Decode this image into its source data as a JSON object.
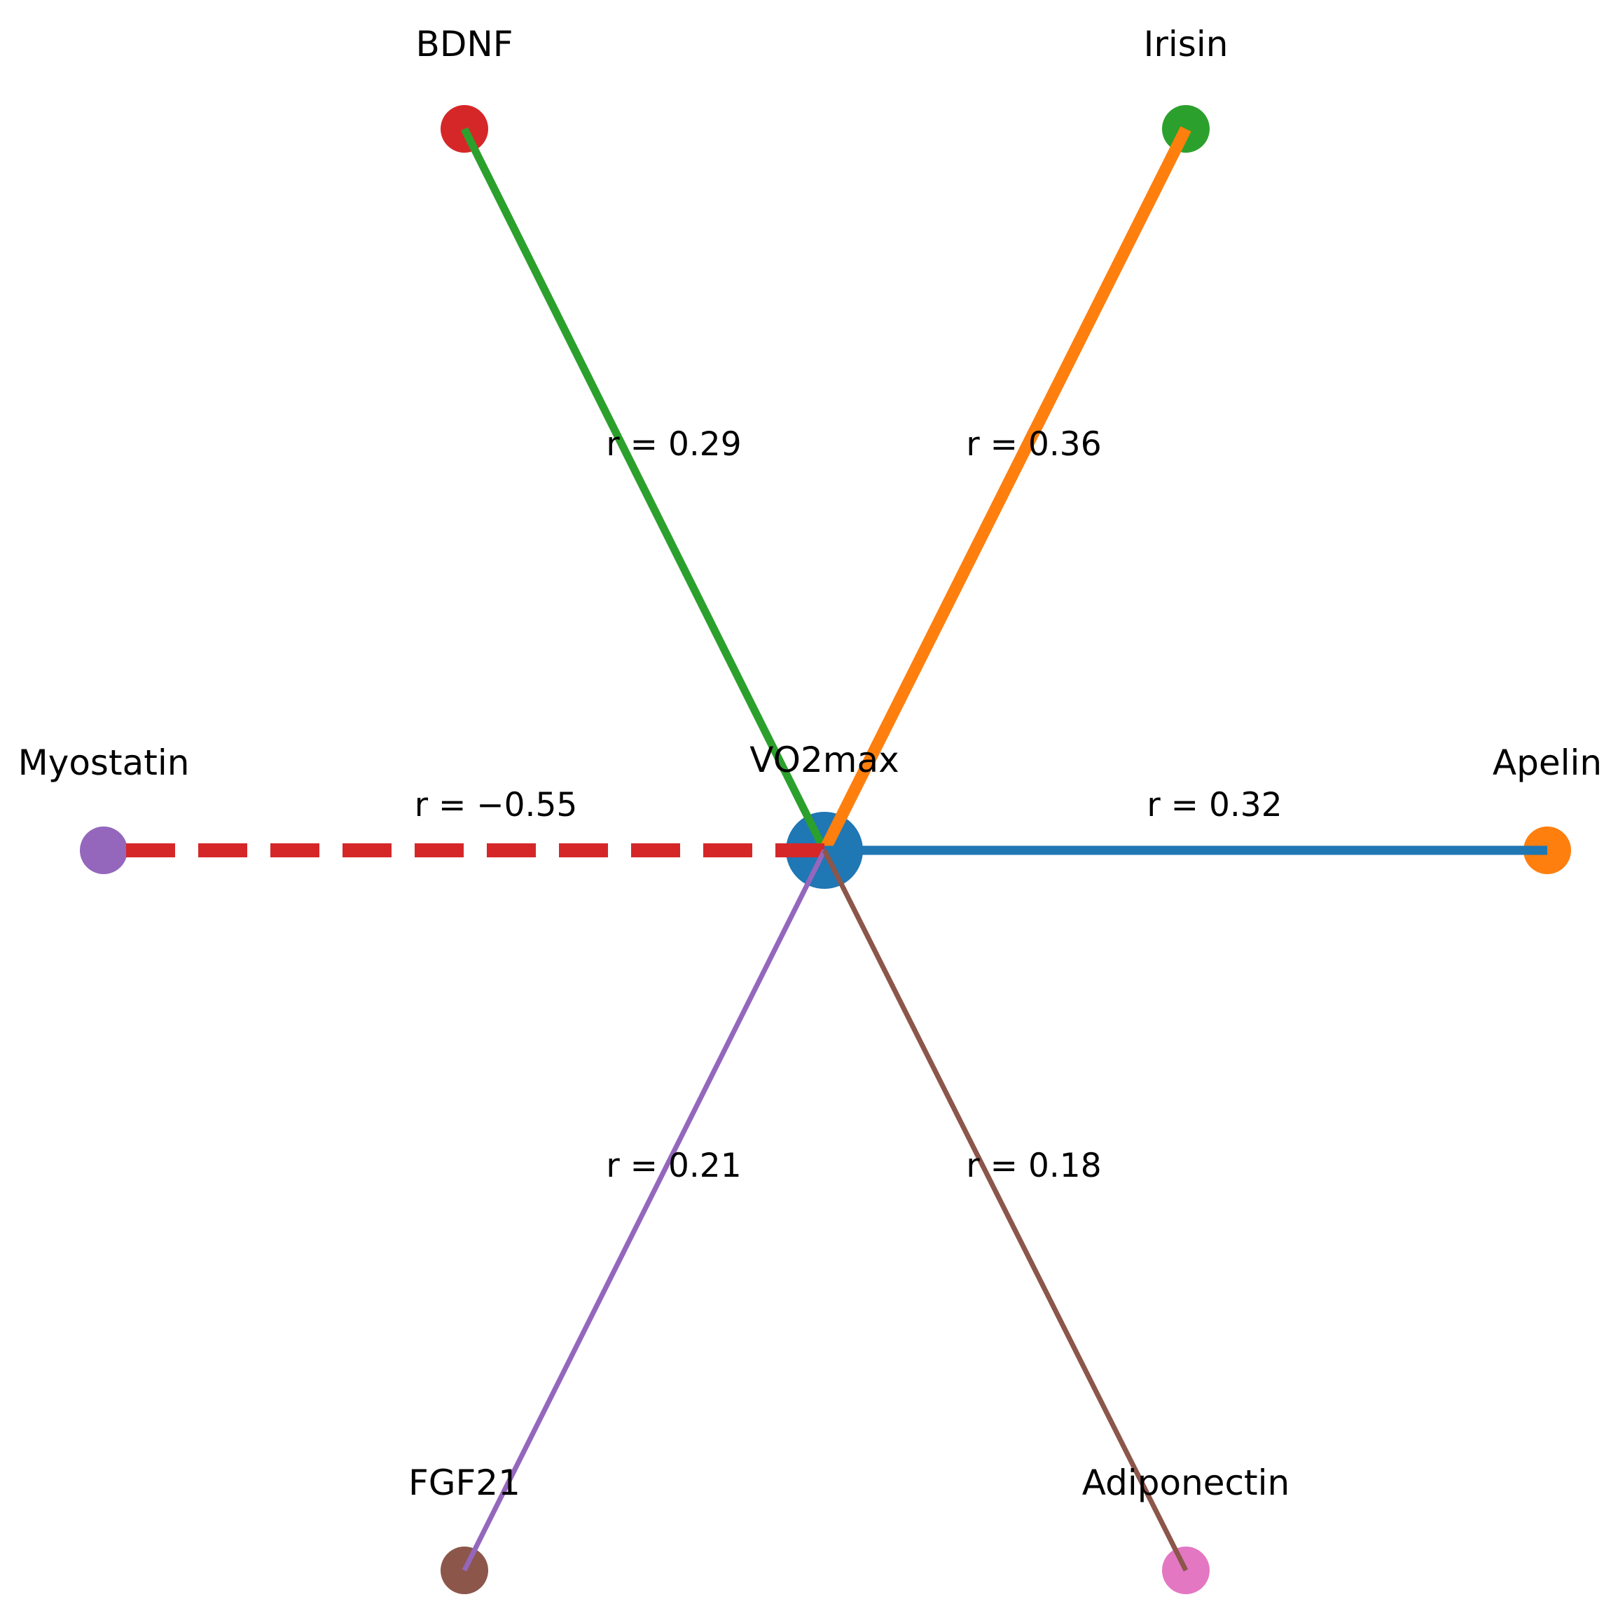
{
  "center": {
    "label": "VO2max",
    "color": "#1f77b4"
  },
  "nodes": [
    {
      "id": "bdnf",
      "label": "BDNF",
      "color": "#d62728",
      "r": "r = 0.29",
      "edge_color": "#2ca02c",
      "edge_style": "solid"
    },
    {
      "id": "irisin",
      "label": "Irisin",
      "color": "#2ca02c",
      "r": "r = 0.36",
      "edge_color": "#ff7f0e",
      "edge_style": "solid"
    },
    {
      "id": "myostatin",
      "label": "Myostatin",
      "color": "#9467bd",
      "r": "r = −0.55",
      "edge_color": "#d62728",
      "edge_style": "dashed"
    },
    {
      "id": "apelin",
      "label": "Apelin",
      "color": "#ff7f0e",
      "r": "r = 0.32",
      "edge_color": "#1f77b4",
      "edge_style": "solid"
    },
    {
      "id": "fgf21",
      "label": "FGF21",
      "color": "#8c564b",
      "r": "r = 0.21",
      "edge_color": "#9467bd",
      "edge_style": "solid"
    },
    {
      "id": "adiponectin",
      "label": "Adiponectin",
      "color": "#e377c2",
      "r": "r = 0.18",
      "edge_color": "#8c564b",
      "edge_style": "solid"
    }
  ]
}
